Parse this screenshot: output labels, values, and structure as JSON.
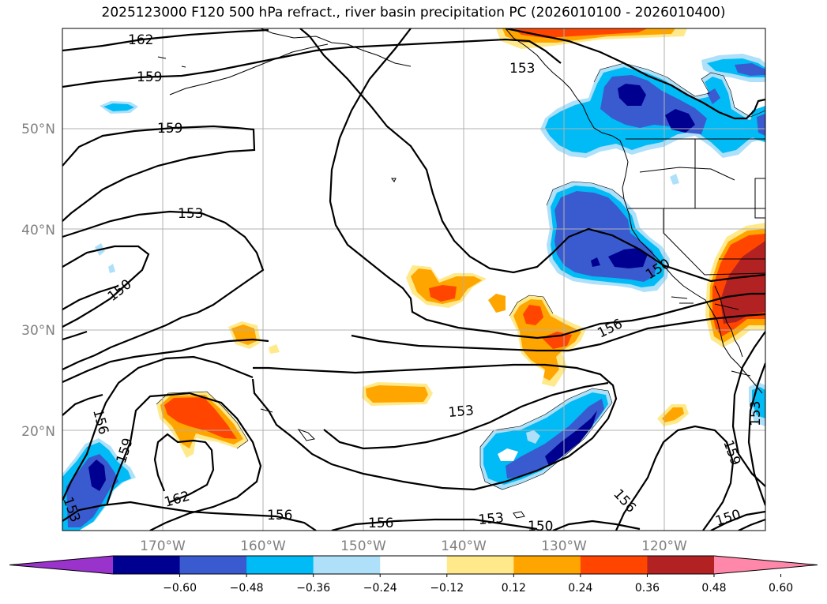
{
  "title": "2025123000 F120 500 hPa refract., river basin precipitation PC (2026010100 - 2026010400)",
  "chart_data": {
    "type": "contour-map",
    "title": "2025123000 F120 500 hPa refract., river basin precipitation PC (2026010100 - 2026010400)",
    "variables": [
      "500 hPa refract.",
      "river basin precipitation PC"
    ],
    "lat_ticks": [
      "20°N",
      "30°N",
      "40°N",
      "50°N"
    ],
    "lon_ticks": [
      "170°W",
      "160°W",
      "150°W",
      "140°W",
      "130°W",
      "120°W"
    ],
    "grid": true,
    "contour_levels": [
      150,
      153,
      156,
      159,
      162
    ],
    "contour_labels": [
      "162",
      "159",
      "159",
      "153",
      "150",
      "156",
      "159",
      "162",
      "153",
      "156",
      "156",
      "153",
      "150",
      "153",
      "156",
      "150",
      "153",
      "159",
      "156",
      "150",
      "153"
    ],
    "colorbar": {
      "orientation": "horizontal",
      "extend": "both",
      "ticks": [
        "−0.60",
        "−0.48",
        "−0.36",
        "−0.24",
        "−0.12",
        "0.12",
        "0.24",
        "0.36",
        "0.48",
        "0.60"
      ],
      "colors": [
        "#9933cc",
        "#000090",
        "#3a5bcf",
        "#00bbf5",
        "#aee0fa",
        "#ffffff",
        "#ffe98a",
        "#ffa500",
        "#ff4500",
        "#b22222",
        "#ff88aa"
      ]
    }
  }
}
